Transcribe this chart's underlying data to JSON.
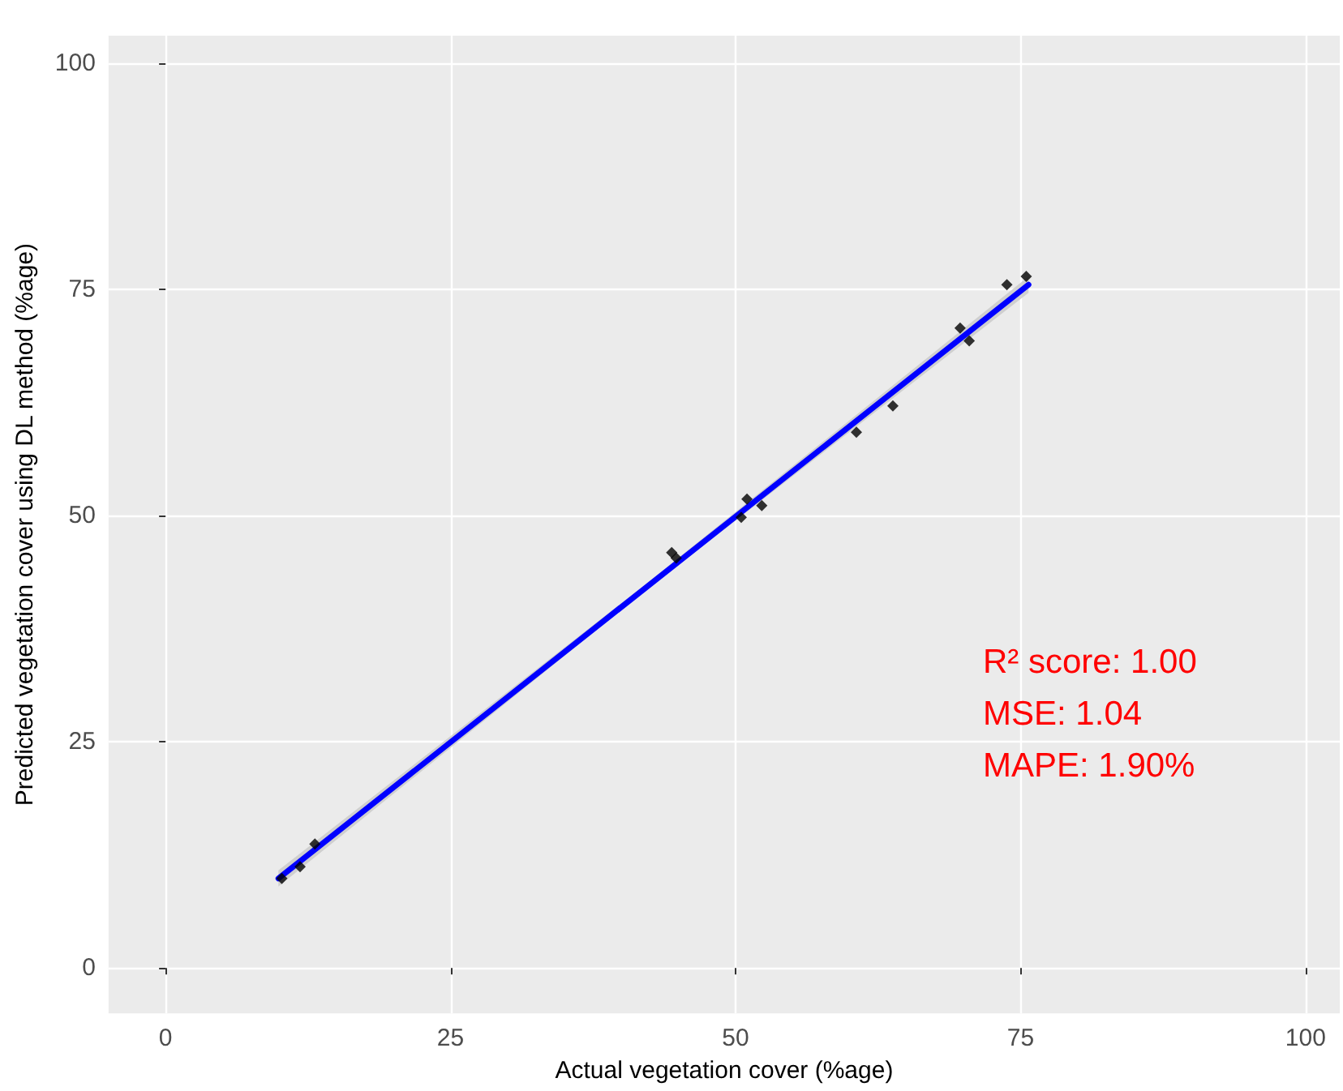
{
  "chart_data": {
    "type": "scatter",
    "xlabel": "Actual vegetation cover (%age)",
    "ylabel": "Predicted vegetation cover using DL method (%age)",
    "xlim": [
      -5,
      103
    ],
    "xticks": [
      0,
      25,
      50,
      75,
      100
    ],
    "ylim": [
      -5,
      103
    ],
    "yticks": [
      0,
      25,
      50,
      75,
      100
    ],
    "grid": true,
    "series": [
      {
        "marker": "diamond",
        "color": "#000000",
        "x": [
          10.2,
          11.8,
          13.1,
          44.4,
          44.8,
          50.5,
          51.0,
          52.3,
          60.6,
          63.8,
          69.7,
          70.5,
          73.8,
          75.5
        ],
        "values": [
          9.9,
          11.2,
          13.7,
          45.9,
          45.3,
          49.8,
          51.8,
          51.1,
          59.2,
          62.1,
          70.7,
          69.3,
          75.5,
          76.4
        ]
      },
      {
        "type": "line",
        "marker": "none",
        "color": "#0000ff",
        "x": [
          9.9,
          42,
          75.7
        ],
        "values": [
          9.9,
          41.9,
          75.5
        ],
        "lower": [
          9.0,
          41.6,
          74.6
        ],
        "upper": [
          10.8,
          42.3,
          76.4
        ]
      }
    ],
    "annotations": [
      "R² score: 1.00",
      "MSE: 1.04",
      "MAPE: 1.90%"
    ]
  }
}
